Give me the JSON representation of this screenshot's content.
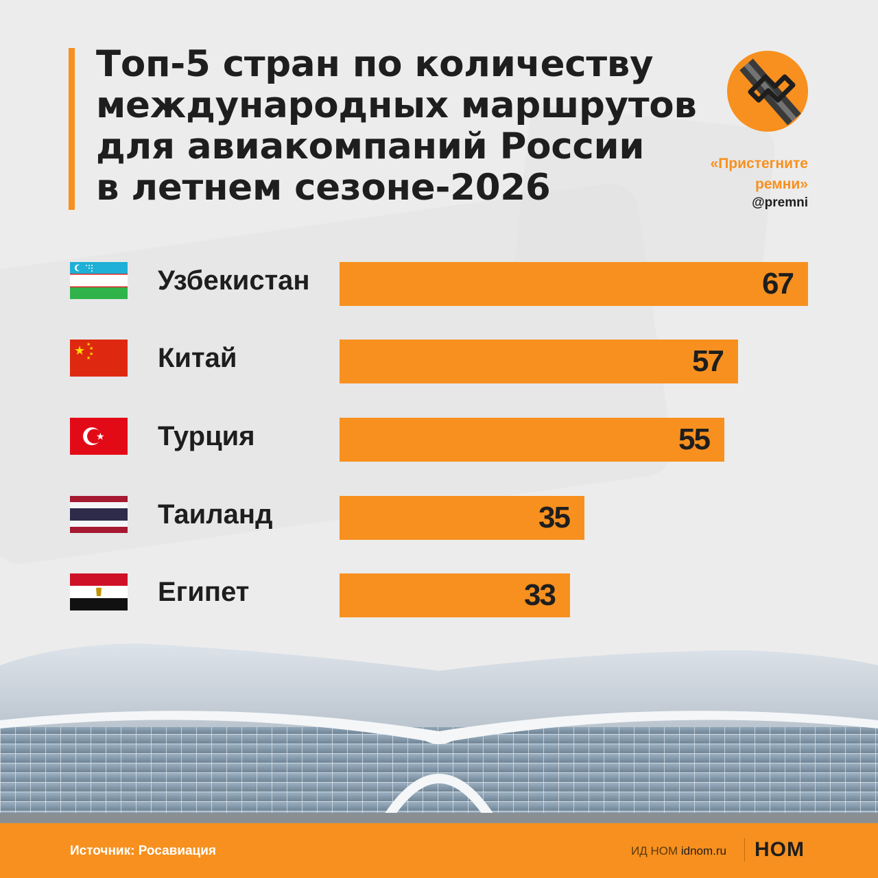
{
  "title_lines": [
    "Топ-5 стран по количеству",
    "международных маршрутов",
    "для авиакомпаний России",
    "в летнем сезоне-2026"
  ],
  "brand": {
    "name_line1": "«Пристегните",
    "name_line2": "ремни»",
    "handle": "@premni",
    "logo_icon": "seatbelt-logo-icon"
  },
  "colors": {
    "accent": "#f7901e",
    "text": "#1e1e1e",
    "background": "#ececec"
  },
  "chart_data": {
    "type": "bar",
    "orientation": "horizontal",
    "categories": [
      "Узбекистан",
      "Китай",
      "Турция",
      "Таиланд",
      "Египет"
    ],
    "values": [
      67,
      57,
      55,
      35,
      33
    ],
    "value_labels": [
      "67",
      "57",
      "55",
      "35",
      "33"
    ],
    "flags": [
      "uzbekistan-flag-icon",
      "china-flag-icon",
      "turkey-flag-icon",
      "thailand-flag-icon",
      "egypt-flag-icon"
    ],
    "data_labels": true,
    "grid": false
  },
  "footer": {
    "source": "Источник: Росавиация",
    "publisher_prefix": "ИД НОМ",
    "publisher_site": "idnom.ru",
    "publisher_logo": "НОМ"
  }
}
